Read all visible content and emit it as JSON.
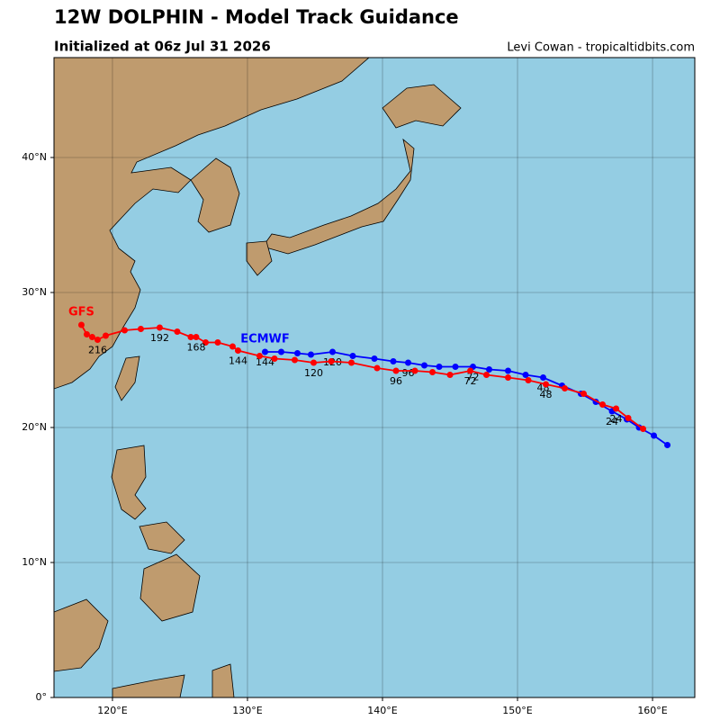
{
  "chart_data": {
    "type": "track",
    "title": "12W DOLPHIN - Model Track Guidance",
    "subtitle": "Initialized at 06z Jul 31 2026",
    "credit": "Levi Cowan - tropicaltidbits.com",
    "xlim": [
      115.67,
      163.13
    ],
    "ylim": [
      0,
      47.4
    ],
    "xticks": [
      {
        "value": 120,
        "label": "120°E"
      },
      {
        "value": 130,
        "label": "130°E"
      },
      {
        "value": 140,
        "label": "140°E"
      },
      {
        "value": 150,
        "label": "150°E"
      },
      {
        "value": 160,
        "label": "160°E"
      }
    ],
    "yticks": [
      {
        "value": 0,
        "label": "0°"
      },
      {
        "value": 10,
        "label": "10°N"
      },
      {
        "value": 20,
        "label": "20°N"
      },
      {
        "value": 30,
        "label": "30°N"
      },
      {
        "value": 40,
        "label": "40°N"
      }
    ],
    "grid": true,
    "ocean_color": "#94cde3",
    "land_color": "#bf9b6e",
    "series": [
      {
        "name": "ECMWF",
        "color": "#0000ff",
        "x": [
          161.1,
          160.1,
          159.0,
          158.1,
          157.0,
          155.8,
          154.7,
          153.3,
          151.9,
          150.6,
          149.3,
          147.9,
          146.7,
          145.4,
          144.2,
          143.1,
          141.9,
          140.8,
          139.4,
          137.8,
          136.3,
          134.7,
          133.7,
          132.5,
          131.3
        ],
        "values": [
          18.7,
          19.4,
          20.0,
          20.6,
          21.2,
          21.9,
          22.5,
          23.1,
          23.7,
          23.9,
          24.2,
          24.3,
          24.5,
          24.5,
          24.5,
          24.6,
          24.8,
          24.9,
          25.1,
          25.3,
          25.6,
          25.4,
          25.5,
          25.6,
          25.6
        ],
        "hour_labels": [
          null,
          null,
          null,
          null,
          24,
          null,
          null,
          null,
          48,
          null,
          null,
          null,
          72,
          null,
          null,
          null,
          96,
          null,
          null,
          null,
          120,
          null,
          null,
          null,
          144
        ]
      },
      {
        "name": "GFS",
        "color": "#ff0000",
        "x": [
          159.3,
          158.2,
          157.3,
          156.3,
          154.9,
          153.5,
          152.1,
          150.8,
          149.3,
          147.7,
          146.5,
          145.0,
          143.7,
          142.4,
          141.0,
          139.6,
          137.7,
          136.2,
          134.9,
          133.5,
          132.0,
          130.9,
          129.3,
          128.9,
          127.8,
          126.9,
          126.2,
          125.8,
          124.8,
          123.5,
          122.1,
          120.9,
          119.5,
          118.9,
          118.5,
          118.1,
          117.7
        ],
        "values": [
          19.9,
          20.7,
          21.4,
          21.7,
          22.5,
          22.9,
          23.2,
          23.5,
          23.7,
          23.9,
          24.2,
          23.9,
          24.1,
          24.2,
          24.2,
          24.4,
          24.8,
          24.9,
          24.8,
          25.0,
          25.1,
          25.3,
          25.7,
          26.0,
          26.3,
          26.3,
          26.7,
          26.7,
          27.1,
          27.4,
          27.3,
          27.2,
          26.8,
          26.5,
          26.7,
          26.9,
          27.6
        ],
        "hour_labels": [
          null,
          null,
          24,
          null,
          null,
          null,
          48,
          null,
          null,
          null,
          72,
          null,
          null,
          null,
          96,
          null,
          null,
          null,
          120,
          null,
          null,
          null,
          144,
          null,
          null,
          null,
          168,
          null,
          null,
          192,
          null,
          null,
          null,
          216,
          null,
          null,
          null
        ]
      }
    ]
  }
}
